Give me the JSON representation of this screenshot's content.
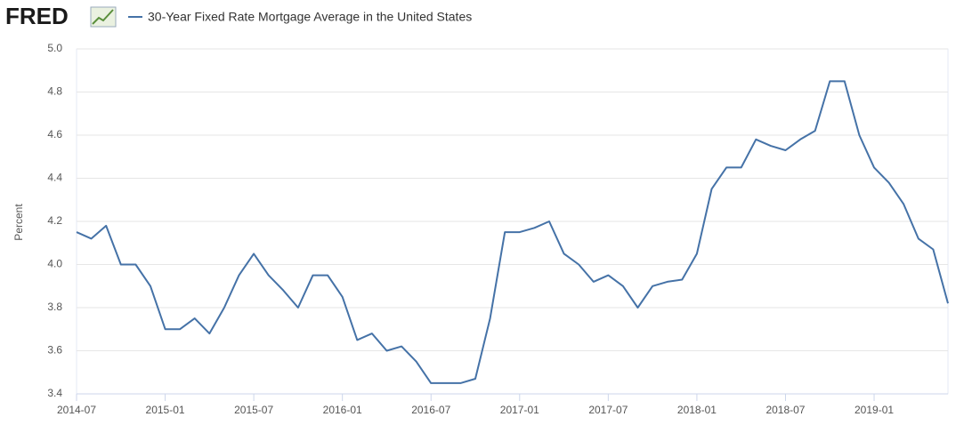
{
  "chart_data": {
    "type": "line",
    "brand": "FRED",
    "ylabel": "Percent",
    "x": [
      "2014-07",
      "2014-08",
      "2014-09",
      "2014-10",
      "2014-11",
      "2014-12",
      "2015-01",
      "2015-02",
      "2015-03",
      "2015-04",
      "2015-05",
      "2015-06",
      "2015-07",
      "2015-08",
      "2015-09",
      "2015-10",
      "2015-11",
      "2015-12",
      "2016-01",
      "2016-02",
      "2016-03",
      "2016-04",
      "2016-05",
      "2016-06",
      "2016-07",
      "2016-08",
      "2016-09",
      "2016-10",
      "2016-11",
      "2016-12",
      "2017-01",
      "2017-02",
      "2017-03",
      "2017-04",
      "2017-05",
      "2017-06",
      "2017-07",
      "2017-08",
      "2017-09",
      "2017-10",
      "2017-11",
      "2017-12",
      "2018-01",
      "2018-02",
      "2018-03",
      "2018-04",
      "2018-05",
      "2018-06",
      "2018-07",
      "2018-08",
      "2018-09",
      "2018-10",
      "2018-11",
      "2018-12",
      "2019-01",
      "2019-02",
      "2019-03",
      "2019-04",
      "2019-05",
      "2019-06"
    ],
    "series": [
      {
        "name": "30-Year Fixed Rate Mortgage Average in the United States",
        "color": "#4572a7",
        "values": [
          4.15,
          4.12,
          4.18,
          4.0,
          4.0,
          3.9,
          3.7,
          3.7,
          3.75,
          3.68,
          3.8,
          3.95,
          4.05,
          3.95,
          3.88,
          3.8,
          3.95,
          3.95,
          3.85,
          3.65,
          3.68,
          3.6,
          3.62,
          3.55,
          3.45,
          3.45,
          3.45,
          3.47,
          3.75,
          4.15,
          4.15,
          4.17,
          4.2,
          4.05,
          4.0,
          3.92,
          3.95,
          3.9,
          3.8,
          3.9,
          3.92,
          3.93,
          4.05,
          4.35,
          4.45,
          4.45,
          4.58,
          4.55,
          4.53,
          4.58,
          4.62,
          4.85,
          4.85,
          4.6,
          4.45,
          4.38,
          4.28,
          4.12,
          4.07,
          3.82
        ]
      }
    ],
    "xlim": [
      "2014-07",
      "2019-06"
    ],
    "xticks": [
      "2014-07",
      "2015-01",
      "2015-07",
      "2016-01",
      "2016-07",
      "2017-01",
      "2017-07",
      "2018-01",
      "2018-07",
      "2019-01"
    ],
    "ylim": [
      3.4,
      5.0
    ],
    "yticks": [
      3.4,
      3.6,
      3.8,
      {
        "value": 4.0,
        "label": "4.0"
      },
      4.2,
      4.4,
      4.6,
      4.8,
      {
        "value": 5.0,
        "label": "5.0"
      }
    ],
    "grid": true
  }
}
